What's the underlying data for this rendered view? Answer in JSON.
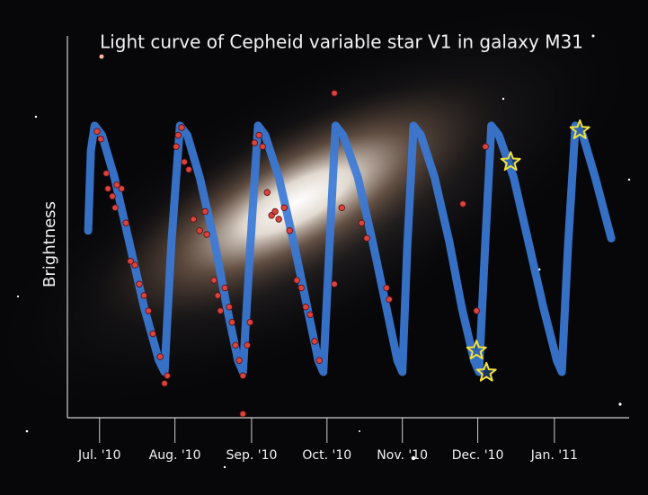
{
  "chart_data": {
    "type": "line",
    "title": "Light curve of Cepheid variable star V1 in galaxy M31",
    "y_label": "Brightness",
    "xlim": [
      2.5,
      225
    ],
    "ylim": [
      0,
      100
    ],
    "xticks": [
      {
        "value": 15.5,
        "label": "Jul. '10"
      },
      {
        "value": 46,
        "label": "Aug. '10"
      },
      {
        "value": 77,
        "label": "Sep. '10"
      },
      {
        "value": 107.5,
        "label": "Oct. '10"
      },
      {
        "value": 138,
        "label": "Nov. '10"
      },
      {
        "value": 168.5,
        "label": "Dec. '10"
      },
      {
        "value": 199.5,
        "label": "Jan. '11"
      }
    ],
    "series": [
      {
        "style": "line",
        "color": "#3b7ad6",
        "x": [
          10.9,
          12,
          13.5,
          16.5,
          21.5,
          27.5,
          33.5,
          39.5,
          41.8,
          44.5,
          48,
          51,
          56,
          62,
          67,
          71.5,
          73.5,
          76.5,
          79.6,
          82.5,
          88,
          94,
          99.5,
          104,
          106,
          108.5,
          111,
          114,
          120,
          126,
          131.5,
          136,
          138,
          140,
          142.5,
          145.5,
          151,
          157,
          162,
          167,
          169,
          171.5,
          174,
          177,
          183,
          189,
          195,
          200.5,
          202.5,
          205,
          208,
          211,
          216,
          222.5
        ],
        "values": [
          49,
          70,
          76.5,
          74,
          63,
          46,
          29,
          15,
          12,
          45,
          76.5,
          74,
          63,
          46,
          29,
          15,
          12,
          45,
          76.5,
          74,
          63,
          46,
          29,
          15,
          12,
          45,
          76.5,
          74,
          63,
          46,
          29,
          15,
          12,
          45,
          76.5,
          74,
          63,
          46,
          29,
          15,
          12,
          45,
          76.5,
          74,
          63,
          46,
          29,
          15,
          12,
          45,
          76.5,
          74,
          63,
          47
        ]
      },
      {
        "style": "dot",
        "color": "#d9443f",
        "x": [
          14.5,
          16.0,
          18.2,
          18.9,
          20.7,
          21.8,
          22.5,
          24.4,
          26.2,
          28.0,
          29.8,
          31.6,
          33.5,
          35.3,
          37.1,
          40.0,
          41.8,
          42.9,
          46.5,
          47.3,
          48.7,
          49.8,
          51.6,
          53.5,
          56.0,
          58.2,
          58.9,
          61.8,
          63.3,
          64.4,
          66.2,
          68.0,
          69.1,
          70.5,
          72.0,
          73.5,
          73.5,
          75.3,
          76.4,
          78.2,
          80.0,
          81.5,
          83.3,
          85.1,
          86.5,
          88.0,
          90.2,
          92.4,
          95.3,
          97.1,
          98.9,
          100.7,
          102.5,
          104.4,
          110.5,
          110.5,
          113.5,
          121.5,
          123.6,
          131.6,
          132.7,
          162.5,
          168.0,
          171.6
        ],
        "values": [
          75,
          73,
          64,
          60,
          58,
          55,
          61,
          60,
          51,
          41,
          40,
          35,
          32,
          28,
          22,
          16,
          9,
          11,
          71,
          74,
          76,
          67,
          65,
          52,
          49,
          54,
          48,
          36,
          32,
          28,
          34,
          29,
          25,
          19,
          15,
          11,
          1,
          19,
          25,
          72,
          74,
          71,
          59,
          53,
          54,
          52,
          55,
          49,
          36,
          34,
          29,
          27,
          20,
          15,
          85,
          35,
          55,
          51,
          47,
          34,
          31,
          56,
          28,
          71
        ]
      },
      {
        "style": "star",
        "color": "#f2e23a",
        "x": [
          181.8,
          168,
          172,
          209.8
        ],
        "values": [
          67,
          17.6,
          11.8,
          75.3
        ]
      }
    ]
  }
}
